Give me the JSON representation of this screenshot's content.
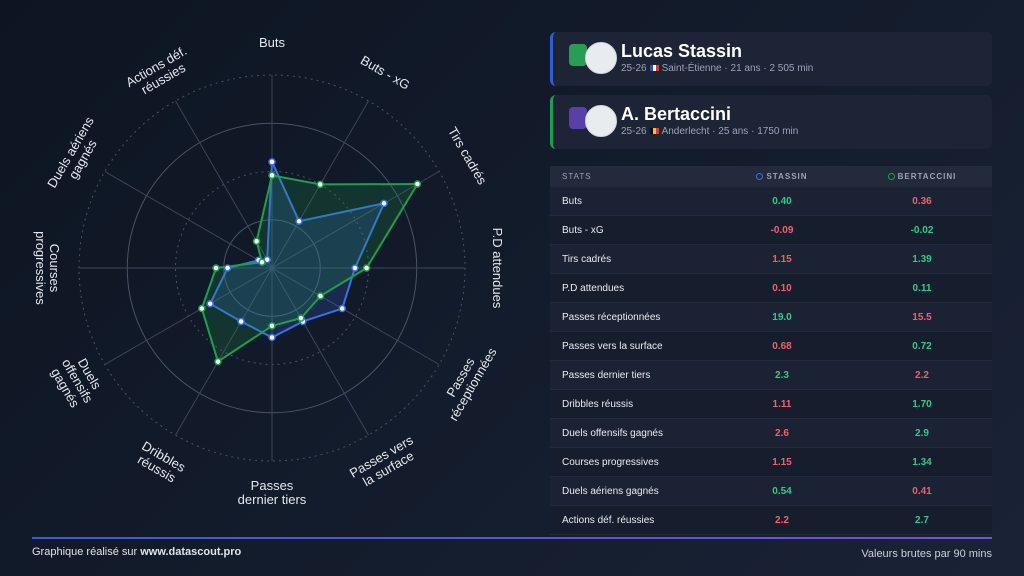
{
  "chart_data": {
    "type": "radar",
    "categories": [
      "Buts",
      "Buts - xG",
      "Tirs cadrés",
      "P.D attendues",
      "Passes réceptionnées",
      "Passes vers la surface",
      "Passes dernier tiers",
      "Dribbles réussis",
      "Duels offensifs gagnés",
      "Courses progressives",
      "Duels aériens gagnés",
      "Actions déf. réussies"
    ],
    "series": [
      {
        "color": "#3c6fe6",
        "values": [
          55,
          28,
          67,
          43,
          42,
          32,
          36,
          32,
          37,
          23,
          8,
          5
        ]
      },
      {
        "color": "#1f9e4b",
        "values": [
          48,
          50,
          87,
          49,
          29,
          30,
          30,
          56,
          42,
          29,
          6,
          16
        ]
      }
    ],
    "rlim": [
      0,
      100
    ],
    "rticks": [
      25,
      50,
      75,
      100
    ],
    "grid": true
  },
  "players": [
    {
      "name": "Lucas Stassin",
      "season": "25-26",
      "club": "Saint-Étienne",
      "age": "21 ans",
      "minutes": "2 505 min"
    },
    {
      "name": "A. Bertaccini",
      "season": "25-26",
      "club": "Anderlecht",
      "age": "25 ans",
      "minutes": "1750 min"
    }
  ],
  "table": {
    "headers": [
      "STATS",
      "STASSIN",
      "BERTACCINI"
    ],
    "rows": [
      [
        "Buts",
        "0.40",
        "0.36"
      ],
      [
        "Buts - xG",
        "-0.09",
        "-0.02"
      ],
      [
        "Tirs cadrés",
        "1.15",
        "1.39"
      ],
      [
        "P.D attendues",
        "0.10",
        "0.11"
      ],
      [
        "Passes réceptionnées",
        "19.0",
        "15.5"
      ],
      [
        "Passes vers la surface",
        "0.68",
        "0.72"
      ],
      [
        "Passes dernier tiers",
        "2.3",
        "2.2"
      ],
      [
        "Dribbles réussis",
        "1.11",
        "1.70"
      ],
      [
        "Duels offensifs gagnés",
        "2.6",
        "2.9"
      ],
      [
        "Courses progressives",
        "1.15",
        "1.34"
      ],
      [
        "Duels aériens gagnés",
        "0.54",
        "0.41"
      ],
      [
        "Actions déf. réussies",
        "2.2",
        "2.7"
      ]
    ]
  },
  "footer": {
    "credit_prefix": "Graphique réalisé sur",
    "credit_link": "www.datascout.pro",
    "note": "Valeurs brutes par 90 mins"
  }
}
